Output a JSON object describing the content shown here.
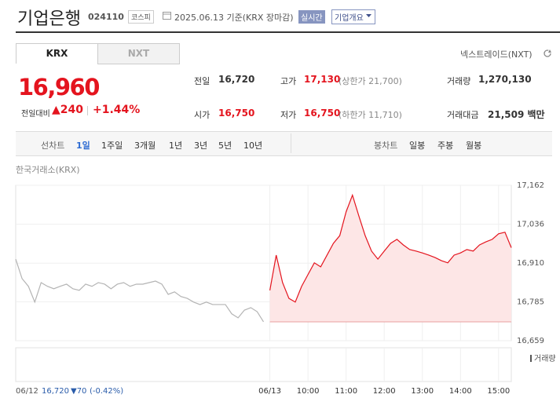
{
  "header": {
    "title": "기업은행",
    "code": "024110",
    "market": "코스피",
    "date": "2025.06.13 기준(KRX 장마감)",
    "realtime": "실시간",
    "overview": "기업개요"
  },
  "tabs": [
    "KRX",
    "NXT"
  ],
  "nxt_link": "넥스트레이드(NXT)",
  "quote": {
    "price": "16,960",
    "change_label": "전일대비",
    "change": "▲240",
    "change_pct": "+1.44%"
  },
  "stats": [
    [
      {
        "label": "전일",
        "value": "16,720"
      },
      {
        "label": "고가",
        "value": "17,130",
        "note": "(상한가 21,700)"
      },
      {
        "label": "거래량",
        "value": "1,270,130"
      }
    ],
    [
      {
        "label": "시가",
        "value": "16,750"
      },
      {
        "label": "저가",
        "value": "16,750",
        "note": "(하한가 11,710)"
      },
      {
        "label": "거래대금",
        "value": "21,509 백만"
      }
    ]
  ],
  "periods": {
    "line_label": "선차트",
    "line_options": [
      "1일",
      "1주일",
      "3개월",
      "1년",
      "3년",
      "5년",
      "10년"
    ],
    "candle_label": "봉차트",
    "candle_options": [
      "일봉",
      "주봉",
      "월봉"
    ]
  },
  "chart_source": "한국거래소(KRX)",
  "chart_data": {
    "type": "line",
    "categories": [
      null,
      null,
      null,
      null,
      null,
      null,
      null,
      null,
      null,
      null,
      null,
      null,
      null,
      null,
      null,
      null,
      null,
      null,
      null,
      null,
      null,
      null,
      null,
      null,
      null,
      null,
      null,
      null,
      null,
      null,
      null,
      null,
      null,
      null,
      null,
      null,
      null,
      null,
      null,
      null,
      "06/13",
      null,
      null,
      null,
      null,
      null,
      "10:00",
      null,
      null,
      null,
      null,
      null,
      "11:00",
      null,
      null,
      null,
      null,
      null,
      "12:00",
      null,
      null,
      null,
      null,
      null,
      "13:00",
      null,
      null,
      null,
      null,
      null,
      "14:00",
      null,
      null,
      null,
      null,
      null,
      "15:00",
      null,
      null
    ],
    "series": [
      {
        "color": "#b4b4b4",
        "values": [
          16923,
          16860,
          16835,
          16784,
          16847,
          16835,
          16827,
          16835,
          16842,
          16827,
          16822,
          16842,
          16835,
          16847,
          16842,
          16827,
          16842,
          16847,
          16835,
          16842,
          16842,
          16847,
          16852,
          16842,
          16809,
          16817,
          16802,
          16796,
          16784,
          16776,
          16784,
          16776,
          16776,
          16776,
          16746,
          16733,
          16758,
          16766,
          16753,
          16720,
          null,
          null,
          null,
          null,
          null,
          null,
          null,
          null,
          null,
          null,
          null,
          null,
          null,
          null,
          null,
          null,
          null,
          null,
          null,
          null,
          null,
          null,
          null,
          null,
          null,
          null,
          null,
          null,
          null,
          null,
          null,
          null,
          null,
          null,
          null,
          null,
          null,
          null,
          null
        ]
      },
      {
        "color": "#e4141e",
        "fill": "#fde6e6",
        "values": [
          null,
          null,
          null,
          null,
          null,
          null,
          null,
          null,
          null,
          null,
          null,
          null,
          null,
          null,
          null,
          null,
          null,
          null,
          null,
          null,
          null,
          null,
          null,
          null,
          null,
          null,
          null,
          null,
          null,
          null,
          null,
          null,
          null,
          null,
          null,
          null,
          null,
          null,
          null,
          null,
          16822,
          16936,
          16847,
          16796,
          16784,
          16835,
          16873,
          16911,
          16898,
          16936,
          16974,
          16999,
          17076,
          17130,
          17063,
          16999,
          16949,
          16923,
          16949,
          16974,
          16987,
          16969,
          16954,
          16949,
          16943,
          16936,
          16928,
          16918,
          16911,
          16936,
          16943,
          16954,
          16949,
          16969,
          16979,
          16987,
          17005,
          17010,
          16960
        ]
      }
    ],
    "baseline": 16720,
    "ylim": [
      16659,
      17162
    ],
    "yticks": [
      {
        "value": 17162,
        "label": "17,162"
      },
      {
        "value": 17036,
        "label": "17,036"
      },
      {
        "value": 16910,
        "label": "16,910"
      },
      {
        "value": 16785,
        "label": "16,785"
      },
      {
        "value": 16659,
        "label": "16,659"
      }
    ],
    "grid": true,
    "volume_label": "거래량"
  },
  "footer": {
    "date": "06/12",
    "price": "16,720",
    "change": "▼70",
    "change_pct": "(-0.42%)"
  }
}
